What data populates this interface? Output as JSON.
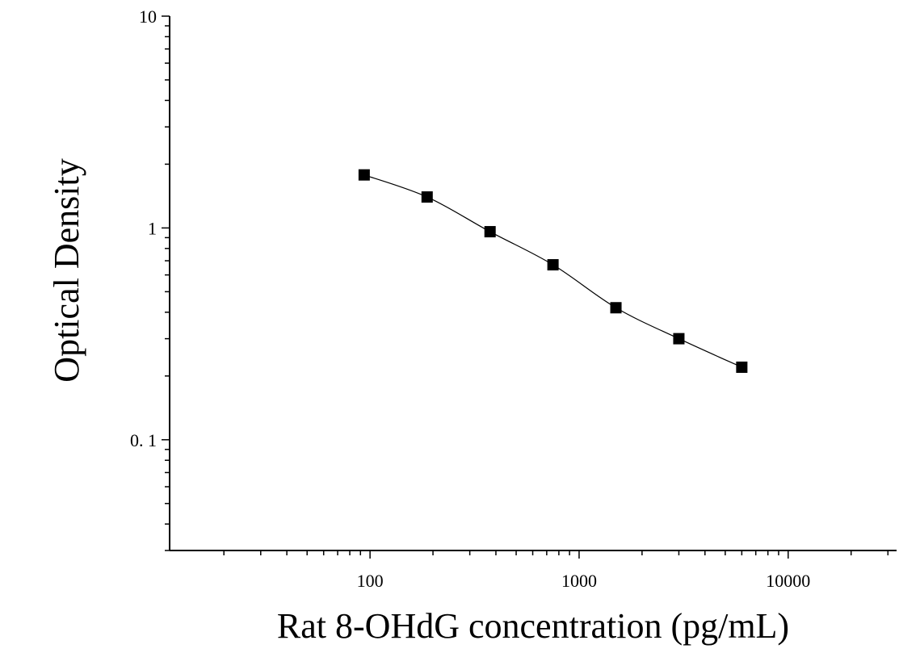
{
  "chart_data": {
    "type": "scatter",
    "title": "",
    "xlabel": "Rat 8-OHdG concentration (pg/mL)",
    "ylabel": "Optical Density",
    "x_scale": "log",
    "y_scale": "log",
    "xlim": [
      11,
      33000
    ],
    "ylim": [
      0.03,
      10
    ],
    "x_ticks": [
      {
        "value": 100,
        "label": "100"
      },
      {
        "value": 1000,
        "label": "1000"
      },
      {
        "value": 10000,
        "label": "10000"
      }
    ],
    "y_ticks": [
      {
        "value": 0.1,
        "label": "0. 1"
      },
      {
        "value": 1,
        "label": "1"
      },
      {
        "value": 10,
        "label": "10"
      }
    ],
    "grid": false,
    "legend": "none",
    "series": [
      {
        "marker": "square",
        "color": "#000000",
        "x": [
          93.75,
          187.5,
          375,
          750,
          1500,
          3000,
          6000
        ],
        "y": [
          1.78,
          1.4,
          0.96,
          0.67,
          0.42,
          0.3,
          0.22
        ]
      }
    ],
    "fit_curve": {
      "type": "smooth",
      "color": "#000000"
    }
  }
}
